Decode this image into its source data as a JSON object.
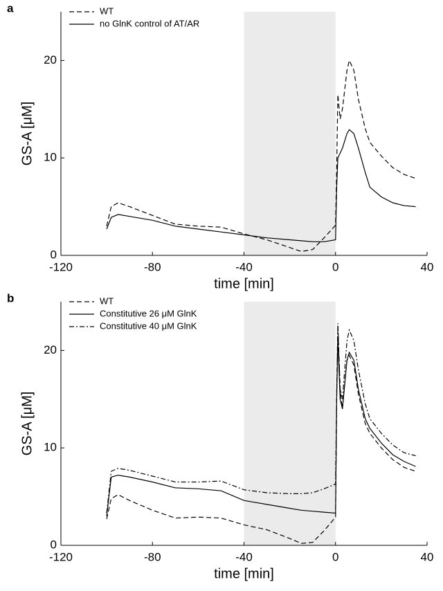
{
  "chart_data": [
    {
      "type": "line",
      "panel": "a",
      "xlabel": "time [min]",
      "ylabel": "GS-A [μM]",
      "xlim": [
        -120,
        40
      ],
      "xticks": [
        -120,
        -80,
        -40,
        0,
        40
      ],
      "ylim": [
        0,
        25
      ],
      "yticks": [
        0,
        10,
        20
      ],
      "shade": {
        "x": [
          -40,
          0
        ],
        "color": "#ebebeb"
      },
      "legend": "upper left",
      "x": [
        -100,
        -98,
        -95,
        -90,
        -80,
        -70,
        -60,
        -50,
        -40,
        -30,
        -20,
        -15,
        -10,
        -5,
        0,
        0.5,
        1,
        2,
        3,
        5,
        6,
        8,
        10,
        13,
        15,
        20,
        25,
        30,
        35
      ],
      "series": [
        {
          "name": "WT",
          "color": "#000000",
          "style": "dashed",
          "values": [
            3.0,
            5.0,
            5.4,
            5.0,
            4.1,
            3.2,
            3.0,
            2.9,
            2.2,
            1.6,
            0.8,
            0.4,
            0.6,
            1.8,
            3.1,
            9,
            16.5,
            14,
            15,
            19,
            20,
            19,
            16,
            13,
            11.6,
            10.2,
            9,
            8.3,
            7.9
          ]
        },
        {
          "name": "no GlnK control of AT/AR",
          "color": "#000000",
          "style": "solid",
          "values": [
            2.7,
            3.9,
            4.2,
            4.0,
            3.6,
            3.0,
            2.7,
            2.4,
            2.1,
            1.8,
            1.6,
            1.5,
            1.4,
            1.4,
            1.6,
            7,
            10,
            10.5,
            11,
            12.5,
            12.9,
            12.5,
            11,
            8.5,
            7,
            6,
            5.4,
            5.1,
            5.0
          ]
        }
      ]
    },
    {
      "type": "line",
      "panel": "b",
      "xlabel": "time [min]",
      "ylabel": "GS-A [μM]",
      "xlim": [
        -120,
        40
      ],
      "xticks": [
        -120,
        -80,
        -40,
        0,
        40
      ],
      "ylim": [
        0,
        25
      ],
      "yticks": [
        0,
        10,
        20
      ],
      "shade": {
        "x": [
          -40,
          0
        ],
        "color": "#ebebeb"
      },
      "legend": "upper left",
      "x": [
        -100,
        -98,
        -95,
        -90,
        -80,
        -70,
        -60,
        -50,
        -40,
        -30,
        -20,
        -15,
        -10,
        -5,
        0,
        0.5,
        1,
        2,
        3,
        5,
        6,
        8,
        10,
        13,
        15,
        20,
        25,
        30,
        35
      ],
      "series": [
        {
          "name": "WT",
          "color": "#000000",
          "style": "dashed",
          "values": [
            2.7,
            4.8,
            5.2,
            4.6,
            3.6,
            2.8,
            2.9,
            2.8,
            2.1,
            1.6,
            0.7,
            0.2,
            0.3,
            1.5,
            2.9,
            15,
            22.5,
            16,
            14,
            19,
            19.5,
            18.5,
            15.5,
            12.5,
            11.5,
            10,
            8.8,
            8,
            7.6
          ]
        },
        {
          "name": "Constitutive 26 μM GlnK",
          "color": "#000000",
          "style": "solid",
          "values": [
            3.0,
            7.0,
            7.2,
            7.0,
            6.5,
            5.9,
            5.8,
            5.6,
            4.6,
            4.2,
            3.8,
            3.6,
            3.5,
            3.4,
            3.3,
            15,
            21,
            15,
            14,
            19,
            19.8,
            19,
            16,
            13,
            12,
            10.5,
            9.3,
            8.6,
            8.1
          ]
        },
        {
          "name": "Constitutive 40 μM GlnK",
          "color": "#000000",
          "style": "dashdot",
          "values": [
            3.3,
            7.6,
            7.9,
            7.7,
            7.1,
            6.5,
            6.5,
            6.6,
            5.7,
            5.4,
            5.3,
            5.3,
            5.4,
            5.8,
            6.3,
            16,
            22.8,
            16,
            15,
            21,
            22.1,
            21,
            18,
            14.5,
            13,
            11.5,
            10.3,
            9.5,
            9.2
          ]
        }
      ]
    }
  ]
}
